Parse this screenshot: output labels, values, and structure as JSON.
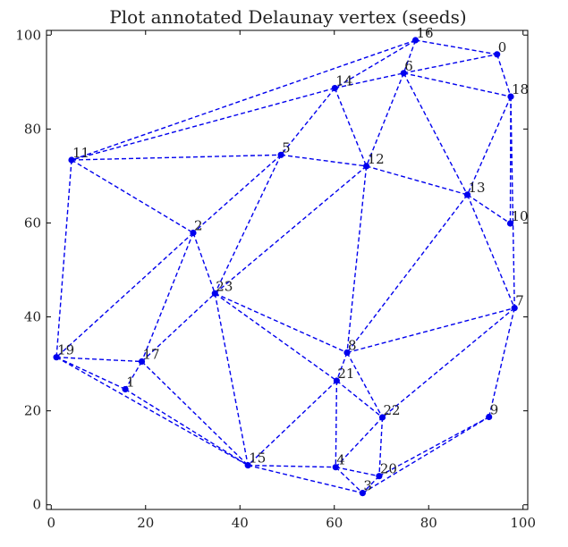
{
  "chart_data": {
    "type": "scatter",
    "title": "Plot annotated Delaunay vertex (seeds)",
    "xlim": [
      -1,
      101
    ],
    "ylim": [
      -1,
      101
    ],
    "xticks": [
      0,
      20,
      40,
      60,
      80,
      100
    ],
    "yticks": [
      0,
      20,
      40,
      60,
      80,
      100
    ],
    "tick_labels": {
      "x": [
        "0",
        "20",
        "40",
        "60",
        "80",
        "100"
      ],
      "y": [
        "0",
        "20",
        "40",
        "60",
        "80",
        "100"
      ]
    },
    "grid": false,
    "color": "#0000ee",
    "points": [
      {
        "label": "0",
        "x": 94.5,
        "y": 95.9
      },
      {
        "label": "1",
        "x": 15.7,
        "y": 24.6
      },
      {
        "label": "2",
        "x": 30.1,
        "y": 57.9
      },
      {
        "label": "3",
        "x": 66.0,
        "y": 2.5
      },
      {
        "label": "4",
        "x": 60.3,
        "y": 8.0
      },
      {
        "label": "5",
        "x": 48.7,
        "y": 74.5
      },
      {
        "label": "6",
        "x": 74.7,
        "y": 91.9
      },
      {
        "label": "7",
        "x": 98.2,
        "y": 41.9
      },
      {
        "label": "8",
        "x": 62.7,
        "y": 32.4
      },
      {
        "label": "9",
        "x": 92.8,
        "y": 18.7
      },
      {
        "label": "10",
        "x": 97.3,
        "y": 59.9
      },
      {
        "label": "11",
        "x": 4.3,
        "y": 73.4
      },
      {
        "label": "12",
        "x": 66.8,
        "y": 72.1
      },
      {
        "label": "13",
        "x": 88.2,
        "y": 66.0
      },
      {
        "label": "14",
        "x": 60.1,
        "y": 88.7
      },
      {
        "label": "15",
        "x": 41.7,
        "y": 8.4
      },
      {
        "label": "16",
        "x": 77.2,
        "y": 98.9
      },
      {
        "label": "17",
        "x": 19.2,
        "y": 30.5
      },
      {
        "label": "18",
        "x": 97.4,
        "y": 86.9
      },
      {
        "label": "19",
        "x": 1.1,
        "y": 31.4
      },
      {
        "label": "20",
        "x": 69.5,
        "y": 6.1
      },
      {
        "label": "21",
        "x": 60.5,
        "y": 26.4
      },
      {
        "label": "22",
        "x": 70.2,
        "y": 18.6
      },
      {
        "label": "23",
        "x": 34.7,
        "y": 45.0
      }
    ],
    "edges": [
      [
        16,
        0
      ],
      [
        0,
        18
      ],
      [
        16,
        6
      ],
      [
        6,
        0
      ],
      [
        6,
        18
      ],
      [
        16,
        14
      ],
      [
        16,
        11
      ],
      [
        14,
        6
      ],
      [
        14,
        11
      ],
      [
        14,
        5
      ],
      [
        14,
        12
      ],
      [
        6,
        12
      ],
      [
        6,
        13
      ],
      [
        18,
        13
      ],
      [
        18,
        10
      ],
      [
        18,
        7
      ],
      [
        11,
        5
      ],
      [
        5,
        12
      ],
      [
        12,
        13
      ],
      [
        13,
        10
      ],
      [
        13,
        7
      ],
      [
        11,
        2
      ],
      [
        11,
        19
      ],
      [
        5,
        2
      ],
      [
        5,
        23
      ],
      [
        12,
        23
      ],
      [
        12,
        8
      ],
      [
        13,
        8
      ],
      [
        2,
        19
      ],
      [
        2,
        23
      ],
      [
        2,
        17
      ],
      [
        19,
        17
      ],
      [
        19,
        1
      ],
      [
        19,
        15
      ],
      [
        17,
        23
      ],
      [
        17,
        1
      ],
      [
        17,
        15
      ],
      [
        1,
        15
      ],
      [
        23,
        15
      ],
      [
        23,
        21
      ],
      [
        23,
        8
      ],
      [
        8,
        7
      ],
      [
        8,
        21
      ],
      [
        8,
        22
      ],
      [
        7,
        22
      ],
      [
        7,
        9
      ],
      [
        21,
        15
      ],
      [
        21,
        4
      ],
      [
        21,
        22
      ],
      [
        15,
        4
      ],
      [
        15,
        3
      ],
      [
        4,
        3
      ],
      [
        4,
        20
      ],
      [
        4,
        22
      ],
      [
        20,
        3
      ],
      [
        20,
        9
      ],
      [
        22,
        20
      ],
      [
        3,
        9
      ]
    ]
  }
}
